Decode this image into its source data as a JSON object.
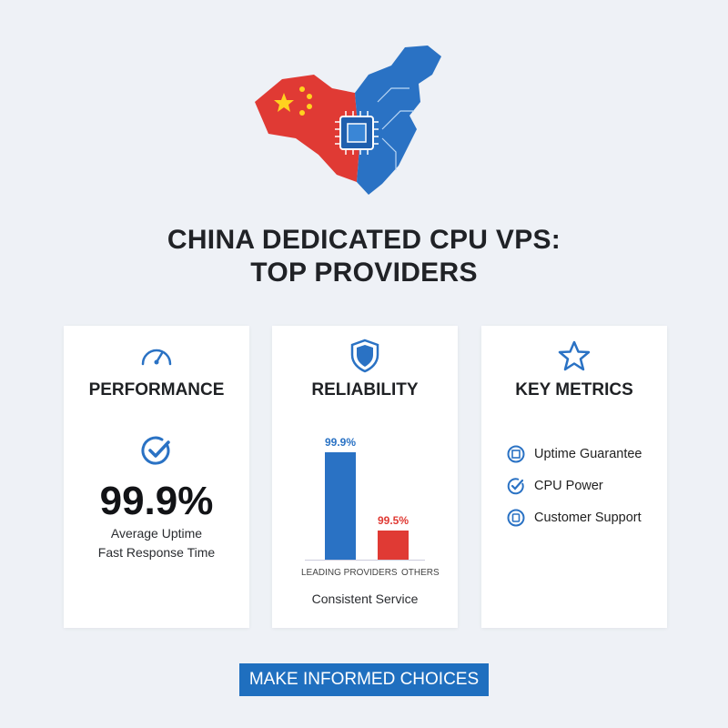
{
  "title_line1": "CHINA DEDICATED CPU VPS:",
  "title_line2": "TOP PROVIDERS",
  "colors": {
    "red": "#e03a34",
    "blue": "#2a72c4",
    "cta": "#1f6fbf"
  },
  "cards": [
    {
      "heading": "PERFORMANCE",
      "icon": "speedometer-icon",
      "badge_icon": "check-circle-icon",
      "value": "99.9%",
      "lines": [
        "Average Uptime",
        "Fast Response Time"
      ]
    },
    {
      "heading": "RELIABILITY",
      "icon": "shield-icon",
      "caption": "Consistent Service"
    },
    {
      "heading": "KEY METRICS",
      "icon": "star-icon",
      "items": [
        {
          "label": "Uptime Guarantee",
          "icon": "chip-circle-icon"
        },
        {
          "label": "CPU Power",
          "icon": "check-circle-icon"
        },
        {
          "label": "Customer Support",
          "icon": "square-circle-icon"
        }
      ]
    }
  ],
  "chart_data": {
    "type": "bar",
    "categories": [
      "LEADING PROVIDERS",
      "OTHERS"
    ],
    "values": [
      99.9,
      99.5
    ],
    "data_labels": [
      "99.9%",
      "99.5%"
    ],
    "colors": [
      "#2a72c4",
      "#e03a34"
    ],
    "xlabel": "Consistent Service"
  },
  "cta_label": "MAKE INFORMED CHOICES"
}
